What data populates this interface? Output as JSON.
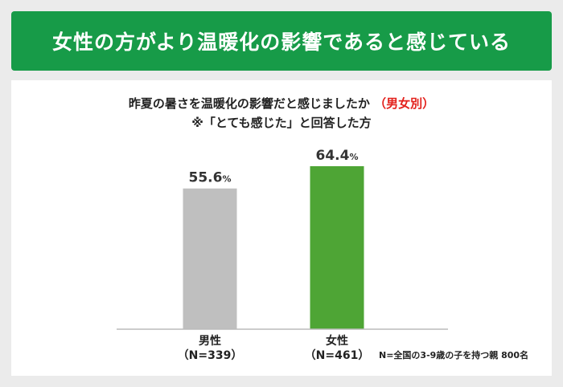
{
  "header": {
    "title": "女性の方がより温暖化の影響であると感じている"
  },
  "chart_data": {
    "type": "bar",
    "title": "昨夏の暑さを温暖化の影響だと感じましたか",
    "title_highlight": "（男女別）",
    "subtitle": "※「とても感じた」と回答した方",
    "categories": [
      "男性",
      "女性"
    ],
    "category_n": [
      "（N=339）",
      "（N=461）"
    ],
    "values": [
      55.6,
      64.4
    ],
    "value_labels": [
      "55.6",
      "64.4"
    ],
    "unit": "%",
    "colors": [
      "#bfbfbf",
      "#4ea535"
    ],
    "ylim": [
      0,
      70
    ],
    "grid": false,
    "note": "N=全国の3-9歳の子を持つ親 800名"
  }
}
